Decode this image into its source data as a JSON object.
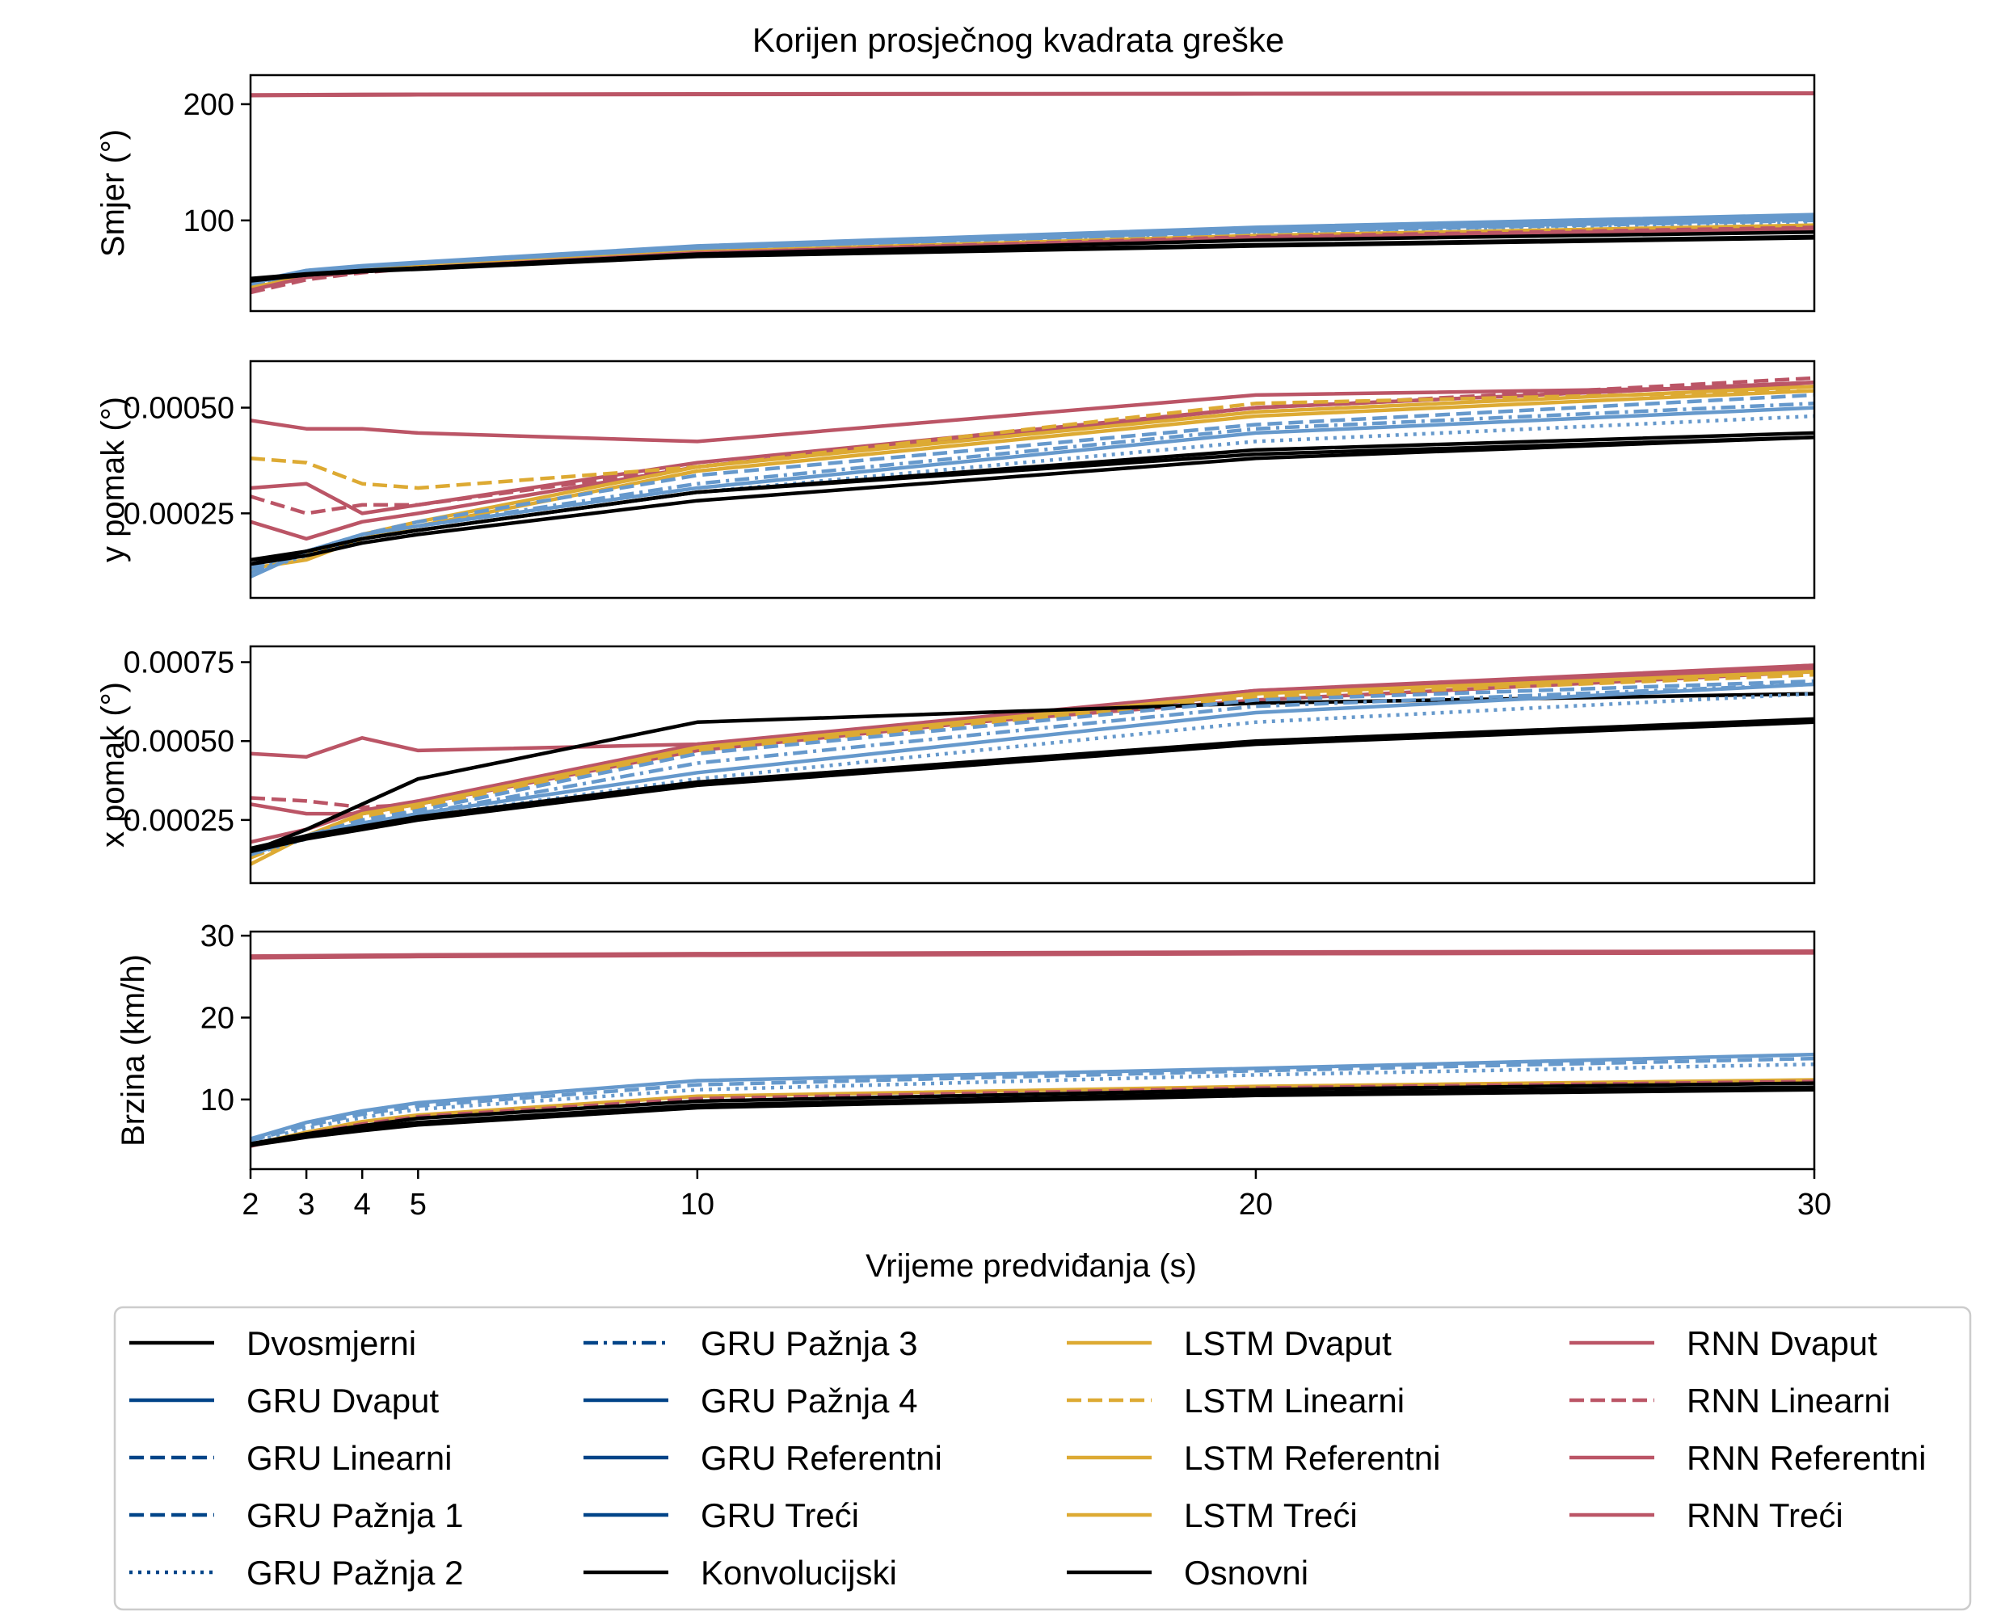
{
  "chart_data": {
    "type": "line",
    "title": "Korijen prosječnog kvadrata greške",
    "xlabel": "Vrijeme predviđanja (s)",
    "xlim": [
      2,
      30
    ],
    "xticks": [
      2,
      3,
      4,
      5,
      10,
      20,
      30
    ],
    "x": [
      2,
      3,
      4,
      5,
      10,
      20,
      30
    ],
    "grid": false,
    "legend_position": "bottom",
    "legend": [
      "Dvosmjerni",
      "GRU Dvaput",
      "GRU Linearni",
      "GRU Pažnja 1",
      "GRU Pažnja 2",
      "GRU Pažnja 3",
      "GRU Pažnja 4",
      "GRU Referentni",
      "GRU Treći",
      "Konvolucijski",
      "LSTM Dvaput",
      "LSTM Linearni",
      "LSTM Referentni",
      "LSTM Treći",
      "Osnovni",
      "RNN Dvaput",
      "RNN Linearni",
      "RNN Referentni",
      "RNN Treći"
    ],
    "style": {
      "Dvosmjerni": {
        "color": "#000000",
        "dash": "solid",
        "legend_color": "#000000"
      },
      "GRU Dvaput": {
        "color": "#6699cc",
        "dash": "solid",
        "legend_color": "#004488"
      },
      "GRU Linearni": {
        "color": "#6699cc",
        "dash": "dashed",
        "legend_color": "#004488"
      },
      "GRU Pažnja 1": {
        "color": "#6699cc",
        "dash": "dashed",
        "legend_color": "#004488"
      },
      "GRU Pažnja 2": {
        "color": "#6699cc",
        "dash": "dotted",
        "legend_color": "#004488"
      },
      "GRU Pažnja 3": {
        "color": "#6699cc",
        "dash": "dashdot",
        "legend_color": "#004488"
      },
      "GRU Pažnja 4": {
        "color": "#6699cc",
        "dash": "solid",
        "legend_color": "#004488"
      },
      "GRU Referentni": {
        "color": "#6699cc",
        "dash": "solid",
        "legend_color": "#004488"
      },
      "GRU Treći": {
        "color": "#6699cc",
        "dash": "solid",
        "legend_color": "#004488"
      },
      "Konvolucijski": {
        "color": "#000000",
        "dash": "solid",
        "legend_color": "#000000"
      },
      "LSTM Dvaput": {
        "color": "#ddaa33",
        "dash": "solid",
        "legend_color": "#ddaa33"
      },
      "LSTM Linearni": {
        "color": "#ddaa33",
        "dash": "dashed",
        "legend_color": "#ddaa33"
      },
      "LSTM Referentni": {
        "color": "#ddaa33",
        "dash": "solid",
        "legend_color": "#ddaa33"
      },
      "LSTM Treći": {
        "color": "#ddaa33",
        "dash": "solid",
        "legend_color": "#ddaa33"
      },
      "Osnovni": {
        "color": "#000000",
        "dash": "solid",
        "legend_color": "#000000"
      },
      "RNN Dvaput": {
        "color": "#bb5566",
        "dash": "solid",
        "legend_color": "#bb5566"
      },
      "RNN Linearni": {
        "color": "#bb5566",
        "dash": "dashed",
        "legend_color": "#bb5566"
      },
      "RNN Referentni": {
        "color": "#bb5566",
        "dash": "solid",
        "legend_color": "#bb5566"
      },
      "RNN Treći": {
        "color": "#bb5566",
        "dash": "solid",
        "legend_color": "#bb5566"
      }
    },
    "panels": [
      {
        "ylabel": "Smjer (°)",
        "ylim": [
          22,
          225
        ],
        "yticks": [
          100,
          200
        ],
        "ytick_labels": [
          "100",
          "200"
        ],
        "series": [
          {
            "name": "RNN Dvaput",
            "values": [
              208,
              208.2,
              208.4,
              208.5,
              208.8,
              209.2,
              209.6
            ]
          },
          {
            "name": "RNN Referentni",
            "values": [
              207.5,
              207.7,
              207.9,
              208.1,
              208.4,
              208.8,
              209.2
            ]
          },
          {
            "name": "GRU Dvaput",
            "values": [
              47,
              57,
              61,
              64,
              78,
              94,
              105
            ]
          },
          {
            "name": "GRU Referentni",
            "values": [
              46,
              56,
              60,
              63,
              77,
              92,
              103
            ]
          },
          {
            "name": "GRU Pažnja 4",
            "values": [
              46,
              56,
              60,
              63,
              76,
              91,
              101
            ]
          },
          {
            "name": "GRU Linearni",
            "values": [
              45,
              55,
              59,
              62,
              75,
              90,
              100
            ]
          },
          {
            "name": "GRU Pažnja 2",
            "values": [
              44,
              54,
              58,
              61,
              73,
              88,
              98
            ]
          },
          {
            "name": "LSTM Dvaput",
            "values": [
              42,
              52,
              57,
              60,
              73,
              87,
              96
            ]
          },
          {
            "name": "RNN Linearni",
            "values": [
              38,
              49,
              55,
              59,
              72,
              86,
              94
            ]
          },
          {
            "name": "RNN Treći",
            "values": [
              40,
              51,
              56,
              59,
              72,
              85,
              93
            ]
          },
          {
            "name": "Konvolucijski",
            "values": [
              48,
              53,
              56,
              59,
              71,
              83,
              90
            ]
          },
          {
            "name": "Dvosmjerni",
            "values": [
              50,
              54,
              57,
              59,
              70,
              79,
              86
            ]
          },
          {
            "name": "Osnovni",
            "values": [
              49,
              53,
              56,
              58,
              69,
              78,
              85
            ]
          }
        ]
      },
      {
        "ylabel": "y pomak (°)",
        "ylim": [
          5e-05,
          0.00061
        ],
        "yticks": [
          0.00025,
          0.0005
        ],
        "ytick_labels": [
          "0.00025",
          "0.00050"
        ],
        "series": [
          {
            "name": "RNN Linearni",
            "values": [
              0.00029,
              0.00025,
              0.00027,
              0.00027,
              0.00036,
              0.0005,
              0.00057
            ]
          },
          {
            "name": "RNN Dvaput",
            "values": [
              0.00023,
              0.00019,
              0.00023,
              0.00025,
              0.00036,
              0.0005,
              0.00056
            ]
          },
          {
            "name": "RNN Referentni",
            "values": [
              0.00031,
              0.00032,
              0.00025,
              0.00027,
              0.00037,
              0.0005,
              0.00056
            ]
          },
          {
            "name": "RNN Treći",
            "values": [
              0.00047,
              0.00045,
              0.00045,
              0.00044,
              0.00042,
              0.00053,
              0.00055
            ]
          },
          {
            "name": "LSTM Linearni",
            "values": [
              0.00038,
              0.00037,
              0.00032,
              0.00031,
              0.00036,
              0.00051,
              0.00054
            ]
          },
          {
            "name": "LSTM Dvaput",
            "values": [
              0.00013,
              0.00015,
              0.0002,
              0.00023,
              0.00036,
              0.00049,
              0.00055
            ]
          },
          {
            "name": "LSTM Referentni",
            "values": [
              0.00012,
              0.00014,
              0.00019,
              0.00022,
              0.00035,
              0.00048,
              0.00054
            ]
          },
          {
            "name": "GRU Pažnja 1",
            "values": [
              0.00012,
              0.00016,
              0.0002,
              0.00023,
              0.00034,
              0.00046,
              0.00053
            ]
          },
          {
            "name": "GRU Pažnja 3",
            "values": [
              0.00011,
              0.00016,
              0.0002,
              0.00022,
              0.00032,
              0.00045,
              0.00051
            ]
          },
          {
            "name": "GRU Dvaput",
            "values": [
              0.0001,
              0.00016,
              0.0002,
              0.00022,
              0.00031,
              0.00044,
              0.0005
            ]
          },
          {
            "name": "GRU Pažnja 2",
            "values": [
              0.00011,
              0.00015,
              0.00019,
              0.00021,
              0.0003,
              0.00042,
              0.00048
            ]
          },
          {
            "name": "Konvolucijski",
            "values": [
              0.00014,
              0.00016,
              0.00019,
              0.00021,
              0.0003,
              0.00039,
              0.00043
            ]
          },
          {
            "name": "Dvosmjerni",
            "values": [
              0.00013,
              0.00016,
              0.00019,
              0.00021,
              0.0003,
              0.0004,
              0.00044
            ]
          },
          {
            "name": "Osnovni",
            "values": [
              0.00013,
              0.00015,
              0.00018,
              0.0002,
              0.00028,
              0.00038,
              0.00043
            ]
          }
        ]
      },
      {
        "ylabel": "x pomak (°)",
        "ylim": [
          5e-05,
          0.0008
        ],
        "yticks": [
          0.00025,
          0.0005,
          0.00075
        ],
        "ytick_labels": [
          "0.00025",
          "0.00050",
          "0.00075"
        ],
        "series": [
          {
            "name": "RNN Treći",
            "values": [
              0.00046,
              0.00045,
              0.00051,
              0.00047,
              0.00049,
              0.00063,
              0.00072
            ]
          },
          {
            "name": "RNN Linearni",
            "values": [
              0.00032,
              0.00031,
              0.00029,
              0.0003,
              0.00047,
              0.00065,
              0.00074
            ]
          },
          {
            "name": "RNN Dvaput",
            "values": [
              0.0003,
              0.00027,
              0.00027,
              0.0003,
              0.00048,
              0.00066,
              0.00074
            ]
          },
          {
            "name": "RNN Referentni",
            "values": [
              0.00018,
              0.00022,
              0.00028,
              0.00031,
              0.00049,
              0.00066,
              0.00073
            ]
          },
          {
            "name": "LSTM Dvaput",
            "values": [
              0.00011,
              0.0002,
              0.00027,
              0.0003,
              0.00048,
              0.00065,
              0.00072
            ]
          },
          {
            "name": "LSTM Linearni",
            "values": [
              0.00013,
              0.0002,
              0.00026,
              0.00029,
              0.00047,
              0.00064,
              0.00071
            ]
          },
          {
            "name": "Konvolucijski",
            "values": [
              0.00015,
              0.00022,
              0.0003,
              0.00038,
              0.00056,
              0.00062,
              0.00065
            ]
          },
          {
            "name": "GRU Pažnja 1",
            "values": [
              0.00014,
              0.0002,
              0.00025,
              0.00028,
              0.00046,
              0.00063,
              0.00069
            ]
          },
          {
            "name": "GRU Pažnja 3",
            "values": [
              0.00014,
              0.0002,
              0.00024,
              0.00027,
              0.00043,
              0.00061,
              0.00068
            ]
          },
          {
            "name": "GRU Dvaput",
            "values": [
              0.00014,
              0.0002,
              0.00024,
              0.00027,
              0.0004,
              0.00059,
              0.00068
            ]
          },
          {
            "name": "GRU Pažnja 2",
            "values": [
              0.00014,
              0.00019,
              0.00023,
              0.00026,
              0.00038,
              0.00056,
              0.00065
            ]
          },
          {
            "name": "Dvosmjerni",
            "values": [
              0.00016,
              0.0002,
              0.00023,
              0.00026,
              0.00037,
              0.0005,
              0.00057
            ]
          },
          {
            "name": "Osnovni",
            "values": [
              0.00015,
              0.00019,
              0.00022,
              0.00025,
              0.00036,
              0.00049,
              0.00056
            ]
          }
        ]
      },
      {
        "ylabel": "Brzina (km/h)",
        "ylim": [
          1.5,
          30.5
        ],
        "yticks": [
          10,
          20,
          30
        ],
        "ytick_labels": [
          "10",
          "20",
          "30"
        ],
        "series": [
          {
            "name": "RNN Dvaput",
            "values": [
              27.5,
              27.55,
              27.6,
              27.65,
              27.8,
              28.0,
              28.1
            ]
          },
          {
            "name": "RNN Referentni",
            "values": [
              27.3,
              27.35,
              27.4,
              27.45,
              27.6,
              27.8,
              27.9
            ]
          },
          {
            "name": "GRU Dvaput",
            "values": [
              5.2,
              7.2,
              8.6,
              9.6,
              12.3,
              13.8,
              15.5
            ]
          },
          {
            "name": "GRU Linearni",
            "values": [
              5.0,
              6.8,
              8.2,
              9.2,
              11.8,
              13.5,
              15.0
            ]
          },
          {
            "name": "GRU Pažnja 2",
            "values": [
              4.8,
              6.5,
              7.8,
              8.8,
              11.2,
              13.0,
              14.3
            ]
          },
          {
            "name": "LSTM Dvaput",
            "values": [
              4.5,
              6.0,
              7.3,
              8.1,
              10.4,
              11.6,
              12.4
            ]
          },
          {
            "name": "RNN Linearni",
            "values": [
              4.3,
              5.8,
              7.0,
              7.9,
              10.1,
              11.4,
              12.2
            ]
          },
          {
            "name": "Konvolucijski",
            "values": [
              4.6,
              5.8,
              6.8,
              7.7,
              9.8,
              11.2,
              12.0
            ]
          },
          {
            "name": "Dvosmjerni",
            "values": [
              4.5,
              5.6,
              6.5,
              7.2,
              9.3,
              10.8,
              11.5
            ]
          },
          {
            "name": "Osnovni",
            "values": [
              4.4,
              5.4,
              6.2,
              6.9,
              9.0,
              10.5,
              11.2
            ]
          }
        ]
      }
    ]
  }
}
